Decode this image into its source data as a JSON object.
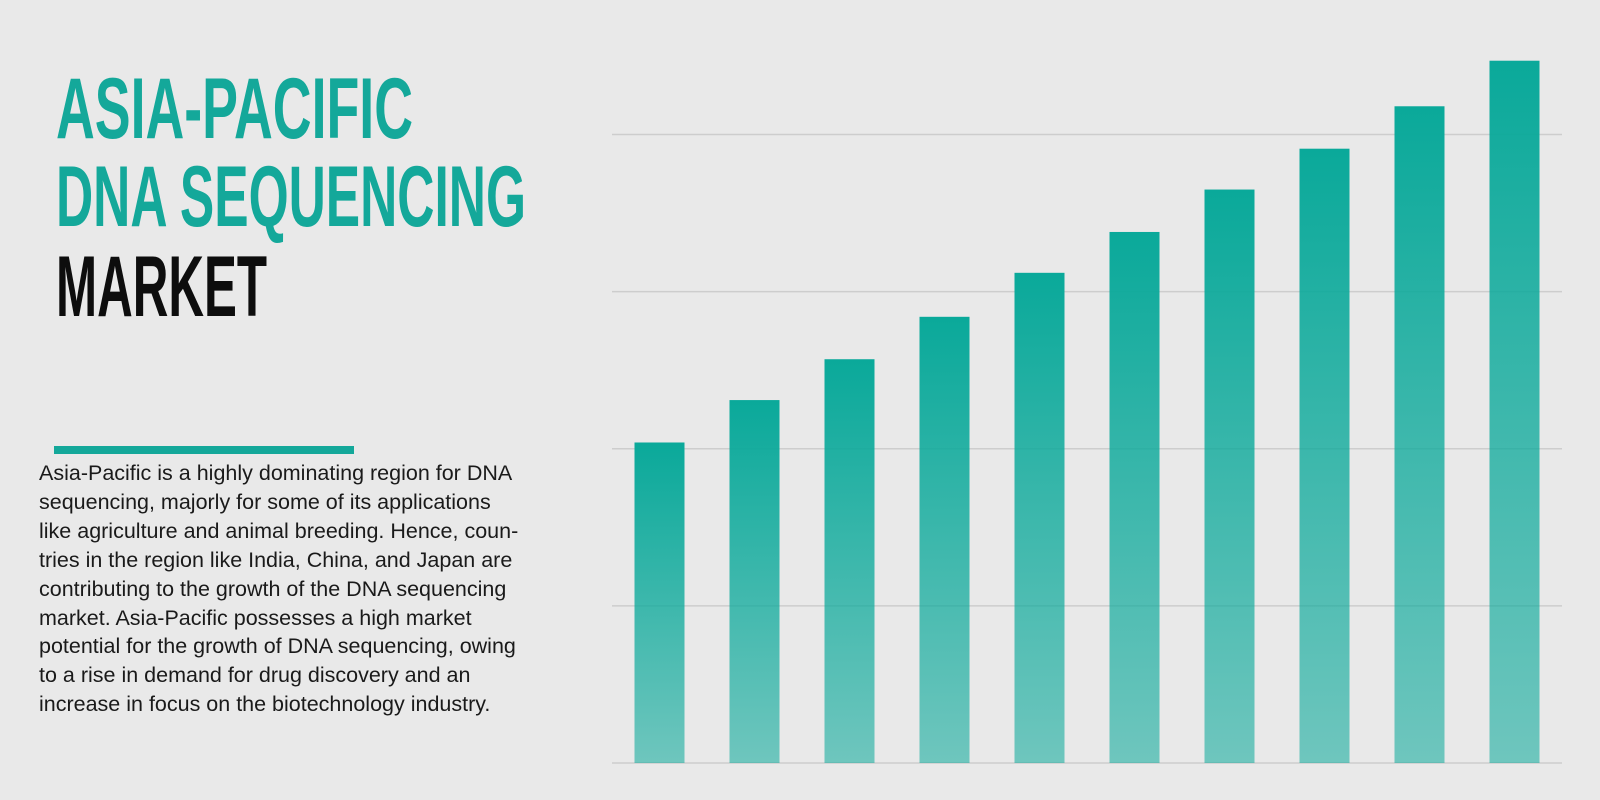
{
  "chart_data": {
    "type": "bar",
    "title": [
      "ASIA-PACIFIC",
      "DNA SEQUENCING",
      "MARKET"
    ],
    "description": [
      "Asia-Pacific is a highly dominating region for DNA",
      "sequencing, majorly for some of its applications",
      "like agriculture and animal breeding. Hence, coun-",
      "tries in the region like India, China, and Japan are",
      "contributing to the growth of the DNA sequencing",
      "market. Asia-Pacific possesses a high market",
      "potential for the growth of DNA sequencing, owing",
      "to a rise in demand for drug discovery and an",
      "increase in focus on the biotechnology industry."
    ],
    "categories": [
      null,
      null,
      null,
      null,
      null,
      null,
      null,
      null,
      null,
      null
    ],
    "values": [
      2.04,
      2.31,
      2.57,
      2.84,
      3.12,
      3.38,
      3.65,
      3.91,
      4.18,
      4.47
    ],
    "color": "#0aa99a",
    "ylim": [
      0,
      4.5
    ],
    "yticks": [
      0,
      1,
      2,
      3,
      4
    ],
    "grid": true
  }
}
